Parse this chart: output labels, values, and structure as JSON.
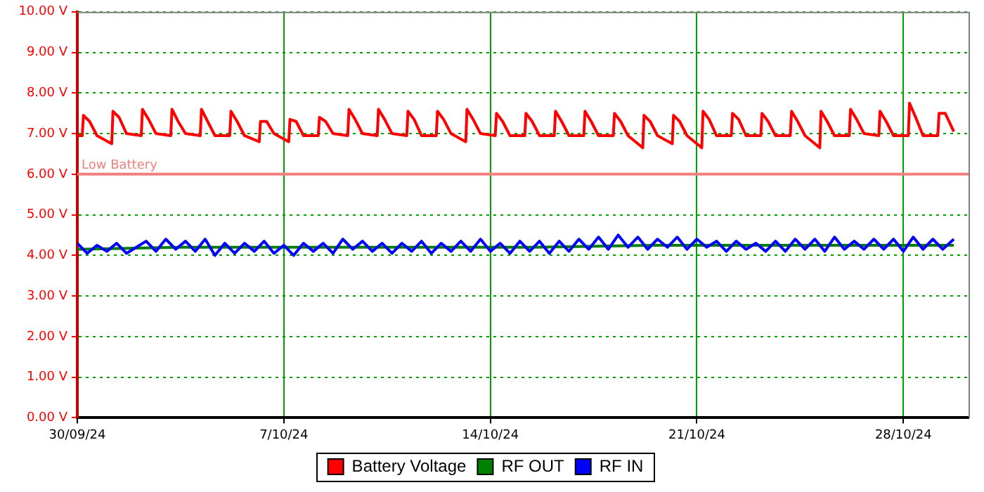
{
  "chart_data": {
    "type": "line",
    "marker": "none",
    "grid": true,
    "legend": "bottom",
    "xlim": [
      "--09-30T00:00",
      "--10-30T05:00"
    ],
    "xticks": [
      {
        "value": "--09-30",
        "label": "30/09/24"
      },
      {
        "value": "--10-07",
        "label": "7/10/24"
      },
      {
        "value": "--10-14",
        "label": "14/10/24"
      },
      {
        "value": "--10-21",
        "label": "21/10/24"
      },
      {
        "value": "--10-28",
        "label": "28/10/24"
      }
    ],
    "ylim": [
      0,
      10
    ],
    "yticks": [
      {
        "value": 0,
        "label": "0.00 V"
      },
      {
        "value": 1,
        "label": "1.00 V"
      },
      {
        "value": 2,
        "label": "2.00 V"
      },
      {
        "value": 3,
        "label": "3.00 V"
      },
      {
        "value": 4,
        "label": "4.00 V"
      },
      {
        "value": 5,
        "label": "5.00 V"
      },
      {
        "value": 6,
        "label": "6.00 V"
      },
      {
        "value": 7,
        "label": "7.00 V"
      },
      {
        "value": 8,
        "label": "8.00 V"
      },
      {
        "value": 9,
        "label": "9.00 V"
      },
      {
        "value": 10,
        "label": "10.00 V"
      }
    ],
    "ref_lines": [
      {
        "axis": "y",
        "value": 6,
        "label": "Low Battery",
        "color": "#f08080"
      }
    ],
    "series": [
      {
        "name": "Battery Voltage",
        "color": "#ff0000",
        "x": [
          "--09-30T00:00",
          "--09-30T04:00",
          "--09-30T05:00",
          "--09-30T10:00",
          "--09-30T16:00",
          "--10-01T04:00",
          "--10-01T05:00",
          "--10-01T10:00",
          "--10-01T16:00",
          "--10-02T04:00",
          "--10-02T05:00",
          "--10-02T10:00",
          "--10-02T16:00",
          "--10-03T04:00",
          "--10-03T05:00",
          "--10-03T10:00",
          "--10-03T16:00",
          "--10-04T04:00",
          "--10-04T05:00",
          "--10-04T10:00",
          "--10-04T16:00",
          "--10-05T04:00",
          "--10-05T05:00",
          "--10-05T10:00",
          "--10-05T16:00",
          "--10-06T04:00",
          "--10-06T05:00",
          "--10-06T10:00",
          "--10-06T16:00",
          "--10-07T04:00",
          "--10-07T05:00",
          "--10-07T10:00",
          "--10-07T16:00",
          "--10-08T04:00",
          "--10-08T05:00",
          "--10-08T10:00",
          "--10-08T16:00",
          "--10-09T04:00",
          "--10-09T05:00",
          "--10-09T10:00",
          "--10-09T16:00",
          "--10-10T04:00",
          "--10-10T05:00",
          "--10-10T10:00",
          "--10-10T16:00",
          "--10-11T04:00",
          "--10-11T05:00",
          "--10-11T10:00",
          "--10-11T16:00",
          "--10-12T04:00",
          "--10-12T05:00",
          "--10-12T10:00",
          "--10-12T16:00",
          "--10-13T04:00",
          "--10-13T05:00",
          "--10-13T10:00",
          "--10-13T16:00",
          "--10-14T04:00",
          "--10-14T05:00",
          "--10-14T10:00",
          "--10-14T16:00",
          "--10-15T04:00",
          "--10-15T05:00",
          "--10-15T10:00",
          "--10-15T16:00",
          "--10-16T04:00",
          "--10-16T05:00",
          "--10-16T10:00",
          "--10-16T16:00",
          "--10-17T04:00",
          "--10-17T05:00",
          "--10-17T10:00",
          "--10-17T16:00",
          "--10-18T04:00",
          "--10-18T05:00",
          "--10-18T10:00",
          "--10-18T16:00",
          "--10-19T04:00",
          "--10-19T05:00",
          "--10-19T10:00",
          "--10-19T16:00",
          "--10-20T04:00",
          "--10-20T05:00",
          "--10-20T10:00",
          "--10-20T16:00",
          "--10-21T04:00",
          "--10-21T05:00",
          "--10-21T10:00",
          "--10-21T16:00",
          "--10-22T04:00",
          "--10-22T05:00",
          "--10-22T10:00",
          "--10-22T16:00",
          "--10-23T04:00",
          "--10-23T05:00",
          "--10-23T10:00",
          "--10-23T16:00",
          "--10-24T04:00",
          "--10-24T05:00",
          "--10-24T10:00",
          "--10-24T16:00",
          "--10-25T04:00",
          "--10-25T05:00",
          "--10-25T10:00",
          "--10-25T16:00",
          "--10-26T04:00",
          "--10-26T05:00",
          "--10-26T10:00",
          "--10-26T16:00",
          "--10-27T04:00",
          "--10-27T05:00",
          "--10-27T10:00",
          "--10-27T16:00",
          "--10-28T04:00",
          "--10-28T05:00",
          "--10-28T10:00",
          "--10-28T16:00",
          "--10-29T04:00",
          "--10-29T05:00",
          "--10-29T10:00",
          "--10-29T17:00"
        ],
        "values": [
          6.95,
          6.95,
          7.45,
          7.3,
          6.95,
          6.75,
          7.55,
          7.4,
          7.0,
          6.95,
          7.6,
          7.35,
          7.0,
          6.95,
          7.6,
          7.3,
          7.0,
          6.95,
          7.6,
          7.3,
          6.95,
          6.95,
          7.55,
          7.3,
          6.95,
          6.8,
          7.3,
          7.3,
          7.0,
          6.8,
          7.35,
          7.3,
          6.95,
          6.95,
          7.4,
          7.3,
          7.0,
          6.95,
          7.6,
          7.35,
          7.0,
          6.95,
          7.6,
          7.35,
          7.0,
          6.95,
          7.55,
          7.35,
          6.95,
          6.95,
          7.55,
          7.35,
          7.0,
          6.8,
          7.6,
          7.35,
          7.0,
          6.95,
          7.5,
          7.3,
          6.95,
          6.95,
          7.5,
          7.3,
          6.95,
          6.95,
          7.55,
          7.3,
          6.95,
          6.95,
          7.55,
          7.3,
          6.95,
          6.95,
          7.5,
          7.3,
          6.95,
          6.65,
          7.45,
          7.3,
          6.95,
          6.75,
          7.45,
          7.3,
          6.95,
          6.65,
          7.55,
          7.35,
          6.95,
          6.95,
          7.5,
          7.35,
          6.95,
          6.95,
          7.5,
          7.3,
          6.95,
          6.95,
          7.55,
          7.3,
          6.95,
          6.65,
          7.55,
          7.3,
          6.95,
          6.95,
          7.6,
          7.35,
          7.0,
          6.95,
          7.55,
          7.3,
          6.95,
          6.95,
          7.75,
          7.4,
          6.95,
          6.95,
          7.5,
          7.5,
          7.05
        ]
      },
      {
        "name": "RF OUT",
        "color": "#008000",
        "x": [
          "--09-30T00:00",
          "--10-03T12:00",
          "--10-07T12:00",
          "--10-11T12:00",
          "--10-15T12:00",
          "--10-19T12:00",
          "--10-23T12:00",
          "--10-27T12:00",
          "--10-29T17:00"
        ],
        "values": [
          4.15,
          4.2,
          4.2,
          4.2,
          4.2,
          4.25,
          4.25,
          4.25,
          4.25
        ]
      },
      {
        "name": "RF IN",
        "color": "#0000ff",
        "x": [
          "--09-30T00:00",
          "--09-30T08:00",
          "--09-30T16:00",
          "--10-01T00:00",
          "--10-01T08:00",
          "--10-01T16:00",
          "--10-02T00:00",
          "--10-02T08:00",
          "--10-02T16:00",
          "--10-03T00:00",
          "--10-03T08:00",
          "--10-03T16:00",
          "--10-04T00:00",
          "--10-04T08:00",
          "--10-04T16:00",
          "--10-05T00:00",
          "--10-05T08:00",
          "--10-05T16:00",
          "--10-06T00:00",
          "--10-06T08:00",
          "--10-06T16:00",
          "--10-07T00:00",
          "--10-07T08:00",
          "--10-07T16:00",
          "--10-08T00:00",
          "--10-08T08:00",
          "--10-08T16:00",
          "--10-09T00:00",
          "--10-09T08:00",
          "--10-09T16:00",
          "--10-10T00:00",
          "--10-10T08:00",
          "--10-10T16:00",
          "--10-11T00:00",
          "--10-11T08:00",
          "--10-11T16:00",
          "--10-12T00:00",
          "--10-12T08:00",
          "--10-12T16:00",
          "--10-13T00:00",
          "--10-13T08:00",
          "--10-13T16:00",
          "--10-14T00:00",
          "--10-14T08:00",
          "--10-14T16:00",
          "--10-15T00:00",
          "--10-15T08:00",
          "--10-15T16:00",
          "--10-16T00:00",
          "--10-16T08:00",
          "--10-16T16:00",
          "--10-17T00:00",
          "--10-17T08:00",
          "--10-17T16:00",
          "--10-18T00:00",
          "--10-18T08:00",
          "--10-18T16:00",
          "--10-19T00:00",
          "--10-19T08:00",
          "--10-19T16:00",
          "--10-20T00:00",
          "--10-20T08:00",
          "--10-20T16:00",
          "--10-21T00:00",
          "--10-21T08:00",
          "--10-21T16:00",
          "--10-22T00:00",
          "--10-22T08:00",
          "--10-22T16:00",
          "--10-23T00:00",
          "--10-23T08:00",
          "--10-23T16:00",
          "--10-24T00:00",
          "--10-24T08:00",
          "--10-24T16:00",
          "--10-25T00:00",
          "--10-25T08:00",
          "--10-25T16:00",
          "--10-26T00:00",
          "--10-26T08:00",
          "--10-26T16:00",
          "--10-27T00:00",
          "--10-27T08:00",
          "--10-27T16:00",
          "--10-28T00:00",
          "--10-28T08:00",
          "--10-28T16:00",
          "--10-29T00:00",
          "--10-29T08:00",
          "--10-29T17:00"
        ],
        "values": [
          4.3,
          4.05,
          4.25,
          4.1,
          4.3,
          4.05,
          4.2,
          4.35,
          4.1,
          4.4,
          4.15,
          4.35,
          4.1,
          4.4,
          4.0,
          4.3,
          4.05,
          4.3,
          4.1,
          4.35,
          4.05,
          4.25,
          4.0,
          4.3,
          4.1,
          4.3,
          4.05,
          4.4,
          4.15,
          4.35,
          4.1,
          4.3,
          4.05,
          4.3,
          4.1,
          4.35,
          4.05,
          4.3,
          4.1,
          4.35,
          4.1,
          4.4,
          4.1,
          4.3,
          4.05,
          4.35,
          4.1,
          4.35,
          4.05,
          4.35,
          4.1,
          4.4,
          4.15,
          4.45,
          4.15,
          4.5,
          4.2,
          4.45,
          4.15,
          4.4,
          4.2,
          4.45,
          4.15,
          4.4,
          4.2,
          4.35,
          4.1,
          4.35,
          4.15,
          4.3,
          4.1,
          4.35,
          4.1,
          4.4,
          4.15,
          4.4,
          4.1,
          4.45,
          4.15,
          4.35,
          4.15,
          4.4,
          4.15,
          4.4,
          4.1,
          4.45,
          4.15,
          4.4,
          4.15,
          4.4
        ]
      }
    ]
  }
}
